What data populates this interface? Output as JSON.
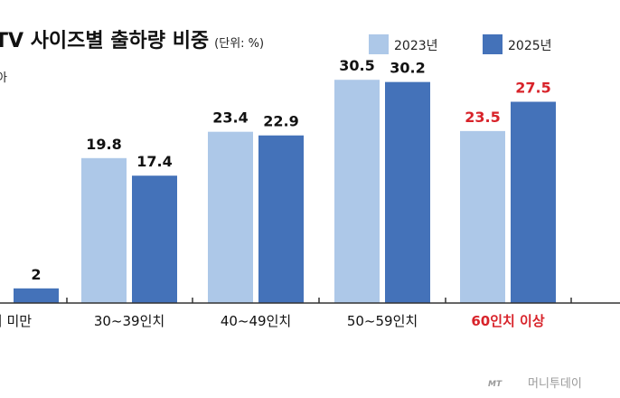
{
  "chart_data": {
    "type": "bar",
    "title": "TV 사이즈별 출하량 비중",
    "unit_note": "(단위: %)",
    "subtitle": "아",
    "categories": [
      "치 미만",
      "30~39인치",
      "40~49인치",
      "50~59인치",
      "60인치 이상"
    ],
    "highlight_category_index": 4,
    "series": [
      {
        "name": "2023년",
        "color": "#adc8e8",
        "values": [
          null,
          19.8,
          23.4,
          30.5,
          23.5
        ]
      },
      {
        "name": "2025년",
        "color": "#4472b9",
        "values": [
          2,
          17.4,
          22.9,
          30.2,
          27.5
        ]
      }
    ],
    "value_labels": [
      [
        "",
        "19.8",
        "23.4",
        "30.5",
        "23.5"
      ],
      [
        "2",
        "17.4",
        "22.9",
        "30.2",
        "27.5"
      ]
    ],
    "ylim": [
      0,
      33
    ],
    "xlabel": "",
    "ylabel": "",
    "grid": false,
    "legend_position": "top-right",
    "highlight_color": "#d8232a",
    "axis_color": "#333333"
  },
  "source": {
    "logo": "MT",
    "text": "머니투데이"
  }
}
